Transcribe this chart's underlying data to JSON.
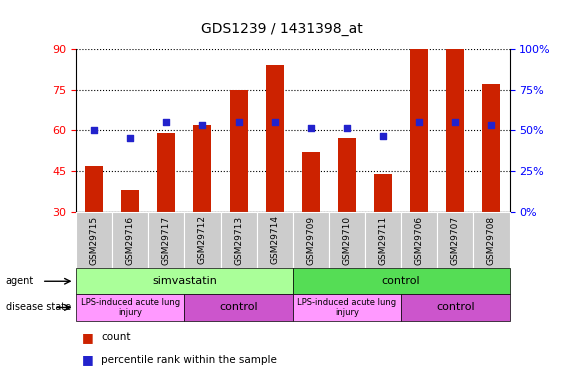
{
  "title": "GDS1239 / 1431398_at",
  "samples": [
    "GSM29715",
    "GSM29716",
    "GSM29717",
    "GSM29712",
    "GSM29713",
    "GSM29714",
    "GSM29709",
    "GSM29710",
    "GSM29711",
    "GSM29706",
    "GSM29707",
    "GSM29708"
  ],
  "count_values": [
    47,
    38,
    59,
    62,
    75,
    84,
    52,
    57,
    44,
    90,
    90,
    77
  ],
  "percentile_values": [
    60,
    57,
    63,
    62,
    63,
    63,
    61,
    61,
    58,
    63,
    63,
    62
  ],
  "ymin": 30,
  "ymax": 90,
  "yticks": [
    30,
    45,
    60,
    75,
    90
  ],
  "ytick_labels_left": [
    "30",
    "45",
    "60",
    "75",
    "90"
  ],
  "ytick_labels_right": [
    "0%",
    "25%",
    "50%",
    "75%",
    "100%"
  ],
  "bar_color": "#cc2200",
  "dot_color": "#2222cc",
  "plot_bg_color": "#ffffff",
  "simvastatin_color": "#aaff99",
  "control_agent_color": "#55dd55",
  "lps_color": "#ff99ff",
  "control_disease_color": "#cc55cc",
  "gray_bg": "#cccccc"
}
